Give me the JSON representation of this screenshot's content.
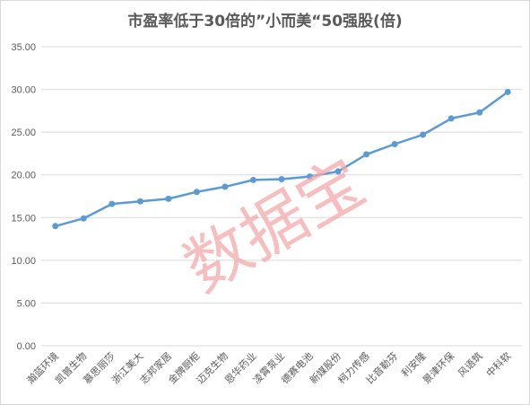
{
  "chart_data": {
    "type": "line",
    "title": "市盈率低于30倍的”小而美“50强股(倍)",
    "xlabel": "",
    "ylabel": "",
    "categories": [
      "瀚蓝环境",
      "凯普生物",
      "慕思丽莎",
      "浙江美大",
      "志邦家居",
      "金牌厨柜",
      "迈克生物",
      "恩华药业",
      "凌霄泵业",
      "德赛电池",
      "新媒股份",
      "柯力传感",
      "比音勒芬",
      "利安隆",
      "景津环保",
      "风语筑",
      "中科软"
    ],
    "series": [
      {
        "values": [
          14.0,
          14.9,
          16.6,
          16.9,
          17.2,
          18.0,
          18.6,
          19.4,
          19.5,
          19.8,
          20.4,
          22.4,
          23.6,
          24.7,
          26.6,
          27.3,
          29.7
        ]
      }
    ],
    "ylim": [
      0,
      35
    ],
    "yticks": [
      "0.00",
      "5.00",
      "10.00",
      "15.00",
      "20.00",
      "25.00",
      "30.00",
      "35.00"
    ],
    "grid": true,
    "line_color": "#5b9bd5",
    "grid_color": "#d9d9d9",
    "watermark": "数据宝",
    "watermark_color": "#f4a9a9"
  }
}
